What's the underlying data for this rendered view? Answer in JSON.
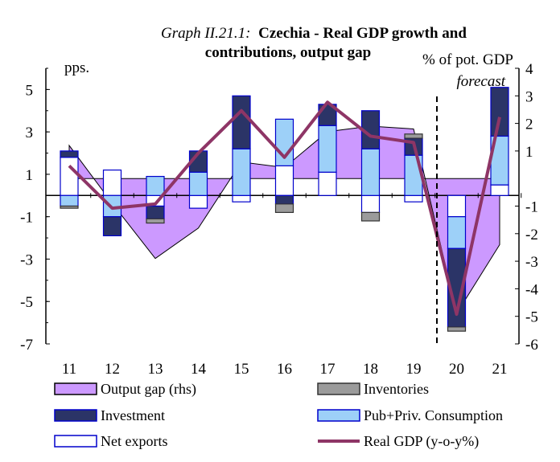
{
  "chart_data": {
    "type": "bar+line+area",
    "title_prefix": "Graph II.21.1:",
    "title_bold_line1": "Czechia - Real GDP growth and",
    "title_bold_line2": "contributions, output gap",
    "left_unit": "pps.",
    "right_unit": "% of pot. GDP",
    "forecast_label": "forecast",
    "categories": [
      "11",
      "12",
      "13",
      "14",
      "15",
      "16",
      "17",
      "18",
      "19",
      "20",
      "21"
    ],
    "left_axis": {
      "min": -7,
      "max": 6,
      "ticks": [
        5,
        3,
        1,
        -1,
        -3,
        -5,
        -7
      ]
    },
    "right_axis": {
      "min": -6,
      "max": 4,
      "ticks": [
        4,
        3,
        2,
        1,
        -1,
        -2,
        -3,
        -4,
        -5,
        -6
      ]
    },
    "series": [
      {
        "name": "Net exports",
        "kind": "bar",
        "color": "#ffffff",
        "stroke": "#0000cc",
        "values": [
          1.8,
          1.2,
          -0.5,
          -0.6,
          -0.3,
          1.4,
          1.1,
          -0.8,
          -0.3,
          -1.0,
          0.5
        ]
      },
      {
        "name": "Pub+Priv. Consumption",
        "kind": "bar",
        "color": "#9dd0f8",
        "stroke": "#0000cc",
        "values": [
          -0.5,
          -1.0,
          0.9,
          1.1,
          2.2,
          2.2,
          2.2,
          2.2,
          1.9,
          -1.5,
          2.3
        ]
      },
      {
        "name": "Investment",
        "kind": "bar",
        "color": "#2b3467",
        "stroke": "#0000cc",
        "values": [
          0.3,
          -0.9,
          -0.6,
          1.0,
          2.5,
          -0.4,
          1.0,
          1.8,
          0.8,
          -3.7,
          2.3
        ]
      },
      {
        "name": "Inventories",
        "kind": "bar",
        "color": "#9b9b9b",
        "stroke": "#333333",
        "values": [
          -0.1,
          0.0,
          -0.2,
          0.0,
          0.0,
          -0.4,
          0.0,
          -0.4,
          0.2,
          -0.2,
          0.0
        ]
      },
      {
        "name": "Output gap (rhs)",
        "kind": "area",
        "color": "#cc99ff",
        "stroke": "#000000",
        "values": [
          1.2,
          -0.9,
          -2.9,
          -1.8,
          0.6,
          0.4,
          1.7,
          1.9,
          1.8,
          -4.9,
          -2.4
        ]
      },
      {
        "name": "Real GDP (y-o-y%)",
        "kind": "line",
        "color": "#8e3566",
        "values": [
          1.4,
          -0.6,
          -0.4,
          2.0,
          4.0,
          1.8,
          4.4,
          2.8,
          2.5,
          -5.6,
          3.7
        ]
      }
    ],
    "legend": [
      {
        "label": "Output gap (rhs)",
        "swatch": "area",
        "color": "#cc99ff",
        "stroke": "#000000"
      },
      {
        "label": "Inventories",
        "swatch": "bar",
        "color": "#9b9b9b",
        "stroke": "#333333"
      },
      {
        "label": "Investment",
        "swatch": "bar",
        "color": "#2b3467",
        "stroke": "#0000cc"
      },
      {
        "label": "Pub+Priv. Consumption",
        "swatch": "bar",
        "color": "#9dd0f8",
        "stroke": "#0000cc"
      },
      {
        "label": "Net exports",
        "swatch": "bar",
        "color": "#ffffff",
        "stroke": "#0000cc"
      },
      {
        "label": "Real GDP (y-o-y%)",
        "swatch": "line",
        "color": "#8e3566",
        "stroke": "#8e3566"
      }
    ]
  }
}
